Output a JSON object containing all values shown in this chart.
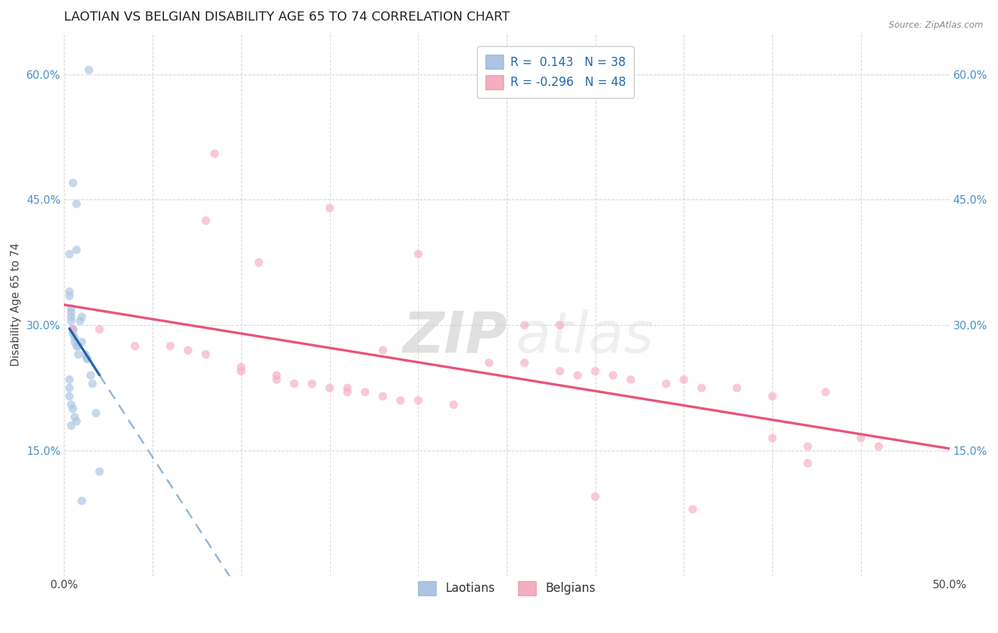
{
  "title": "LAOTIAN VS BELGIAN DISABILITY AGE 65 TO 74 CORRELATION CHART",
  "source": "Source: ZipAtlas.com",
  "ylabel": "Disability Age 65 to 74",
  "xlim": [
    0.0,
    0.5
  ],
  "ylim": [
    0.0,
    0.65
  ],
  "laotian_color": "#aac4e2",
  "belgian_color": "#f5adc0",
  "laotian_line_color": "#2166ac",
  "belgian_line_color": "#e8547a",
  "laotian_dash_color": "#92b4d4",
  "R_laotian": 0.143,
  "N_laotian": 38,
  "R_belgian": -0.296,
  "N_belgian": 48,
  "laotian_x": [
    0.014,
    0.005,
    0.007,
    0.007,
    0.003,
    0.003,
    0.003,
    0.004,
    0.004,
    0.004,
    0.004,
    0.005,
    0.005,
    0.005,
    0.006,
    0.006,
    0.007,
    0.008,
    0.008,
    0.009,
    0.01,
    0.01,
    0.012,
    0.013,
    0.013,
    0.015,
    0.016,
    0.018,
    0.02,
    0.003,
    0.003,
    0.003,
    0.004,
    0.005,
    0.006,
    0.007,
    0.01,
    0.004
  ],
  "laotian_y": [
    0.605,
    0.47,
    0.445,
    0.39,
    0.385,
    0.34,
    0.335,
    0.32,
    0.315,
    0.31,
    0.305,
    0.295,
    0.295,
    0.29,
    0.285,
    0.28,
    0.275,
    0.275,
    0.265,
    0.305,
    0.31,
    0.28,
    0.265,
    0.26,
    0.26,
    0.24,
    0.23,
    0.195,
    0.125,
    0.235,
    0.225,
    0.215,
    0.205,
    0.2,
    0.19,
    0.185,
    0.09,
    0.18
  ],
  "belgian_x": [
    0.005,
    0.02,
    0.04,
    0.06,
    0.07,
    0.08,
    0.085,
    0.1,
    0.1,
    0.11,
    0.12,
    0.12,
    0.13,
    0.14,
    0.15,
    0.16,
    0.16,
    0.17,
    0.18,
    0.18,
    0.19,
    0.2,
    0.22,
    0.24,
    0.26,
    0.26,
    0.28,
    0.28,
    0.29,
    0.3,
    0.31,
    0.32,
    0.34,
    0.35,
    0.36,
    0.38,
    0.4,
    0.4,
    0.42,
    0.43,
    0.45,
    0.46,
    0.08,
    0.15,
    0.2,
    0.3,
    0.355,
    0.42
  ],
  "belgian_y": [
    0.295,
    0.295,
    0.275,
    0.275,
    0.27,
    0.265,
    0.505,
    0.25,
    0.245,
    0.375,
    0.24,
    0.235,
    0.23,
    0.23,
    0.225,
    0.225,
    0.22,
    0.22,
    0.215,
    0.27,
    0.21,
    0.21,
    0.205,
    0.255,
    0.255,
    0.3,
    0.3,
    0.245,
    0.24,
    0.245,
    0.24,
    0.235,
    0.23,
    0.235,
    0.225,
    0.225,
    0.215,
    0.165,
    0.155,
    0.22,
    0.165,
    0.155,
    0.425,
    0.44,
    0.385,
    0.095,
    0.08,
    0.135
  ],
  "background_color": "#ffffff",
  "grid_color": "#d8d8d8",
  "title_fontsize": 13,
  "axis_fontsize": 11,
  "tick_fontsize": 11,
  "legend_fontsize": 12,
  "marker_size": 75,
  "marker_alpha": 0.65,
  "watermark_zip_color": "#c8c8c8",
  "watermark_atlas_color": "#d8d8d8"
}
